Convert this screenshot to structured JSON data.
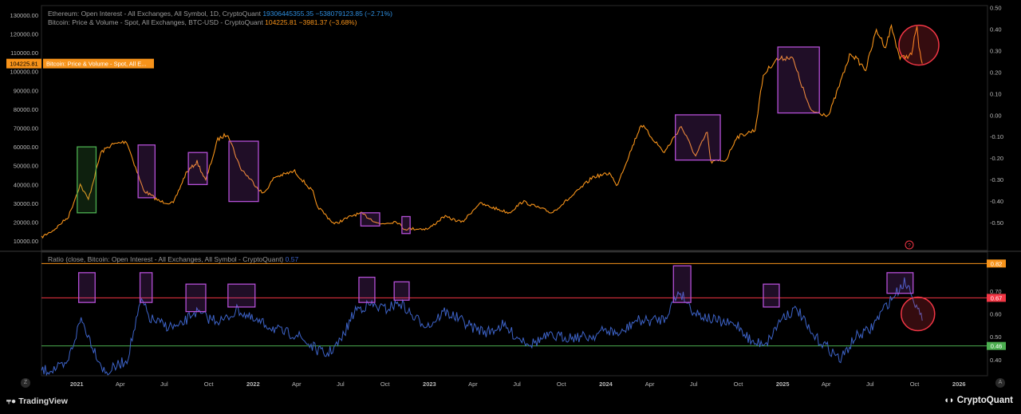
{
  "legend": {
    "eth_label": "Ethereum: Open Interest - All Exchanges, All Symbol, 1D, CryptoQuant",
    "eth_values": "19306445355.35  −538079123.85 (−2.71%)",
    "btc_label": "Bitcoin: Price & Volume - Spot, All Exchanges, BTC-USD - CryptoQuant",
    "btc_values": "104225.81  −3981.37 (−3.68%)",
    "ratio_label": "Ratio (close, Bitcoin: Open Interest - All Exchanges, All Symbol - CryptoQuant)",
    "ratio_value": "0.57"
  },
  "btc_tag": {
    "price": "104225.81",
    "label": "Bitcoin: Price & Volume - Spot, All E..."
  },
  "branding": {
    "tradingview": "TradingView",
    "cryptoquant": "CryptoQuant"
  },
  "buttons": {
    "z": "Z",
    "a": "A",
    "question": "?"
  },
  "colors": {
    "btc": "#f7931a",
    "eth": "#2f8fe0",
    "ratio": "#3d63c8",
    "box_purple": "#b44fd6",
    "box_green": "#4caf50",
    "upper": "#f7931a",
    "red_line": "#f23645",
    "green_line": "#4caf50"
  },
  "chart_data": [
    {
      "type": "line",
      "title": "Bitcoin: Price & Volume - Spot, All Exchanges, BTC-USD - CryptoQuant",
      "x_ticks": [
        "2021",
        "Apr",
        "Jul",
        "Oct",
        "2022",
        "Apr",
        "Jul",
        "Oct",
        "2023",
        "Apr",
        "Jul",
        "Oct",
        "2024",
        "Apr",
        "Jul",
        "Oct",
        "2025",
        "Apr",
        "Jul",
        "Oct",
        "2026"
      ],
      "left_axis_ticks": [
        "130000.00",
        "120000.00",
        "110000.00",
        "100000.00",
        "90000.00",
        "80000.00",
        "70000.00",
        "60000.00",
        "50000.00",
        "40000.00",
        "30000.00",
        "20000.00",
        "10000.00"
      ],
      "right_axis_ticks": [
        "0.50",
        "0.40",
        "0.30",
        "0.20",
        "0.10",
        "0.00",
        "-0.10",
        "-0.20",
        "-0.30",
        "-0.40",
        "-0.50"
      ],
      "ylim_left": [
        5000,
        135000
      ],
      "series": [
        {
          "name": "Bitcoin: Price & Volume - Spot, All Exchanges, BTC-USD - CryptoQuant",
          "x": [
            "2020-10-20",
            "2020-11-15",
            "2020-12-15",
            "2021-01-08",
            "2021-01-25",
            "2021-02-20",
            "2021-03-13",
            "2021-04-14",
            "2021-05-19",
            "2021-06-22",
            "2021-07-20",
            "2021-08-15",
            "2021-09-07",
            "2021-09-25",
            "2021-10-20",
            "2021-11-10",
            "2021-12-05",
            "2022-01-22",
            "2022-02-15",
            "2022-03-28",
            "2022-05-05",
            "2022-05-12",
            "2022-06-18",
            "2022-07-30",
            "2022-08-14",
            "2022-09-20",
            "2022-10-25",
            "2022-11-09",
            "2022-12-30",
            "2023-01-31",
            "2023-03-10",
            "2023-04-14",
            "2023-06-15",
            "2023-07-13",
            "2023-09-11",
            "2023-10-24",
            "2023-12-05",
            "2024-01-11",
            "2024-01-23",
            "2024-02-28",
            "2024-03-14",
            "2024-05-01",
            "2024-06-05",
            "2024-07-05",
            "2024-07-29",
            "2024-08-05",
            "2024-09-06",
            "2024-09-27",
            "2024-11-05",
            "2024-11-22",
            "2024-12-17",
            "2025-01-20",
            "2025-02-28",
            "2025-04-07",
            "2025-05-22",
            "2025-06-22",
            "2025-07-14",
            "2025-08-02",
            "2025-08-14",
            "2025-09-01",
            "2025-09-25",
            "2025-10-06",
            "2025-10-10",
            "2025-10-17"
          ],
          "y": [
            12000,
            16000,
            23000,
            40000,
            32000,
            57000,
            61000,
            63000,
            37000,
            31000,
            30000,
            46000,
            52000,
            42000,
            64000,
            67000,
            49000,
            35000,
            44000,
            47000,
            36000,
            29000,
            19000,
            24000,
            24500,
            19000,
            20500,
            16500,
            16500,
            23000,
            20000,
            30000,
            25000,
            31000,
            25000,
            34000,
            44000,
            46000,
            39000,
            62000,
            72000,
            57000,
            71000,
            55000,
            68000,
            52000,
            53000,
            65000,
            69000,
            98000,
            106000,
            108000,
            79000,
            77000,
            110000,
            101000,
            122000,
            113000,
            124000,
            107000,
            109000,
            125000,
            112000,
            104225.81
          ]
        }
      ],
      "annotations": [
        {
          "type": "box",
          "color": "green",
          "x": [
            "2021-01-02",
            "2021-02-10"
          ],
          "y": [
            25000,
            60000
          ]
        },
        {
          "type": "box",
          "color": "purple",
          "x": [
            "2021-05-08",
            "2021-06-12"
          ],
          "y": [
            33000,
            61000
          ]
        },
        {
          "type": "box",
          "color": "purple",
          "x": [
            "2021-08-20",
            "2021-09-28"
          ],
          "y": [
            40000,
            57000
          ]
        },
        {
          "type": "box",
          "color": "purple",
          "x": [
            "2021-11-12",
            "2022-01-12"
          ],
          "y": [
            31000,
            63000
          ]
        },
        {
          "type": "box",
          "color": "purple",
          "x": [
            "2022-08-12",
            "2022-09-20"
          ],
          "y": [
            18000,
            25000
          ]
        },
        {
          "type": "box",
          "color": "purple",
          "x": [
            "2022-11-05",
            "2022-11-22"
          ],
          "y": [
            14000,
            23000
          ]
        },
        {
          "type": "box",
          "color": "purple",
          "x": [
            "2024-05-24",
            "2024-08-25"
          ],
          "y": [
            53000,
            77000
          ]
        },
        {
          "type": "box",
          "color": "purple",
          "x": [
            "2024-12-22",
            "2025-03-18"
          ],
          "y": [
            78000,
            113000
          ]
        },
        {
          "type": "circle",
          "color": "red",
          "x": "2025-10-10",
          "y": 114000
        }
      ]
    },
    {
      "type": "line",
      "title": "Ratio (close, Bitcoin: Open Interest - All Exchanges, All Symbol - CryptoQuant)",
      "right_axis_ticks": [
        "0.70",
        "0.60",
        "0.50",
        "0.40"
      ],
      "ylim": [
        0.33,
        0.87
      ],
      "levels": [
        {
          "value": 0.82,
          "label": "0.82",
          "color": "orange"
        },
        {
          "value": 0.67,
          "label": "0.67",
          "color": "red"
        },
        {
          "value": 0.46,
          "label": "0.46",
          "color": "green"
        }
      ],
      "series": [
        {
          "name": "Ratio (close, Bitcoin: Open Interest - All Exchanges, All Symbol - CryptoQuant)",
          "x": [
            "2020-10-20",
            "2020-11-15",
            "2020-12-10",
            "2021-01-10",
            "2021-02-05",
            "2021-03-01",
            "2021-04-15",
            "2021-05-15",
            "2021-06-01",
            "2021-07-01",
            "2021-08-01",
            "2021-09-01",
            "2021-10-01",
            "2021-11-01",
            "2021-12-01",
            "2022-01-01",
            "2022-02-01",
            "2022-03-01",
            "2022-04-01",
            "2022-05-01",
            "2022-06-01",
            "2022-07-01",
            "2022-08-01",
            "2022-09-01",
            "2022-10-01",
            "2022-11-01",
            "2022-12-01",
            "2023-01-01",
            "2023-02-01",
            "2023-03-01",
            "2023-04-01",
            "2023-05-01",
            "2023-06-01",
            "2023-07-01",
            "2023-08-01",
            "2023-09-01",
            "2023-10-01",
            "2023-11-01",
            "2023-12-01",
            "2024-01-01",
            "2024-02-01",
            "2024-03-01",
            "2024-04-01",
            "2024-05-01",
            "2024-06-01",
            "2024-07-01",
            "2024-08-01",
            "2024-09-01",
            "2024-10-01",
            "2024-11-01",
            "2024-12-01",
            "2025-01-01",
            "2025-02-01",
            "2025-03-01",
            "2025-04-01",
            "2025-05-01",
            "2025-06-01",
            "2025-07-01",
            "2025-08-01",
            "2025-08-20",
            "2025-09-10",
            "2025-09-25",
            "2025-10-05",
            "2025-10-17"
          ],
          "y": [
            0.35,
            0.36,
            0.37,
            0.58,
            0.45,
            0.34,
            0.4,
            0.66,
            0.58,
            0.55,
            0.54,
            0.61,
            0.58,
            0.57,
            0.62,
            0.57,
            0.55,
            0.52,
            0.51,
            0.46,
            0.42,
            0.48,
            0.62,
            0.64,
            0.62,
            0.65,
            0.58,
            0.55,
            0.61,
            0.58,
            0.54,
            0.52,
            0.55,
            0.5,
            0.47,
            0.5,
            0.5,
            0.5,
            0.5,
            0.53,
            0.51,
            0.57,
            0.57,
            0.58,
            0.7,
            0.61,
            0.58,
            0.56,
            0.55,
            0.47,
            0.48,
            0.59,
            0.62,
            0.51,
            0.46,
            0.4,
            0.5,
            0.53,
            0.63,
            0.68,
            0.74,
            0.7,
            0.63,
            0.57
          ]
        }
      ],
      "annotations": [
        {
          "type": "box",
          "color": "purple",
          "x": [
            "2021-01-05",
            "2021-02-08"
          ],
          "y": [
            0.65,
            0.78
          ]
        },
        {
          "type": "box",
          "color": "purple",
          "x": [
            "2021-05-12",
            "2021-06-06"
          ],
          "y": [
            0.65,
            0.78
          ]
        },
        {
          "type": "box",
          "color": "purple",
          "x": [
            "2021-08-15",
            "2021-09-25"
          ],
          "y": [
            0.61,
            0.73
          ]
        },
        {
          "type": "box",
          "color": "purple",
          "x": [
            "2021-11-10",
            "2022-01-05"
          ],
          "y": [
            0.63,
            0.73
          ]
        },
        {
          "type": "box",
          "color": "purple",
          "x": [
            "2022-08-08",
            "2022-09-10"
          ],
          "y": [
            0.65,
            0.76
          ]
        },
        {
          "type": "box",
          "color": "purple",
          "x": [
            "2022-10-20",
            "2022-11-20"
          ],
          "y": [
            0.66,
            0.74
          ]
        },
        {
          "type": "box",
          "color": "purple",
          "x": [
            "2024-05-20",
            "2024-06-25"
          ],
          "y": [
            0.65,
            0.81
          ]
        },
        {
          "type": "box",
          "color": "purple",
          "x": [
            "2024-11-22",
            "2024-12-25"
          ],
          "y": [
            0.63,
            0.73
          ]
        },
        {
          "type": "box",
          "color": "purple",
          "x": [
            "2025-08-05",
            "2025-09-28"
          ],
          "y": [
            0.69,
            0.78
          ]
        },
        {
          "type": "circle",
          "color": "red",
          "x": "2025-10-08",
          "y": 0.6
        }
      ]
    }
  ]
}
